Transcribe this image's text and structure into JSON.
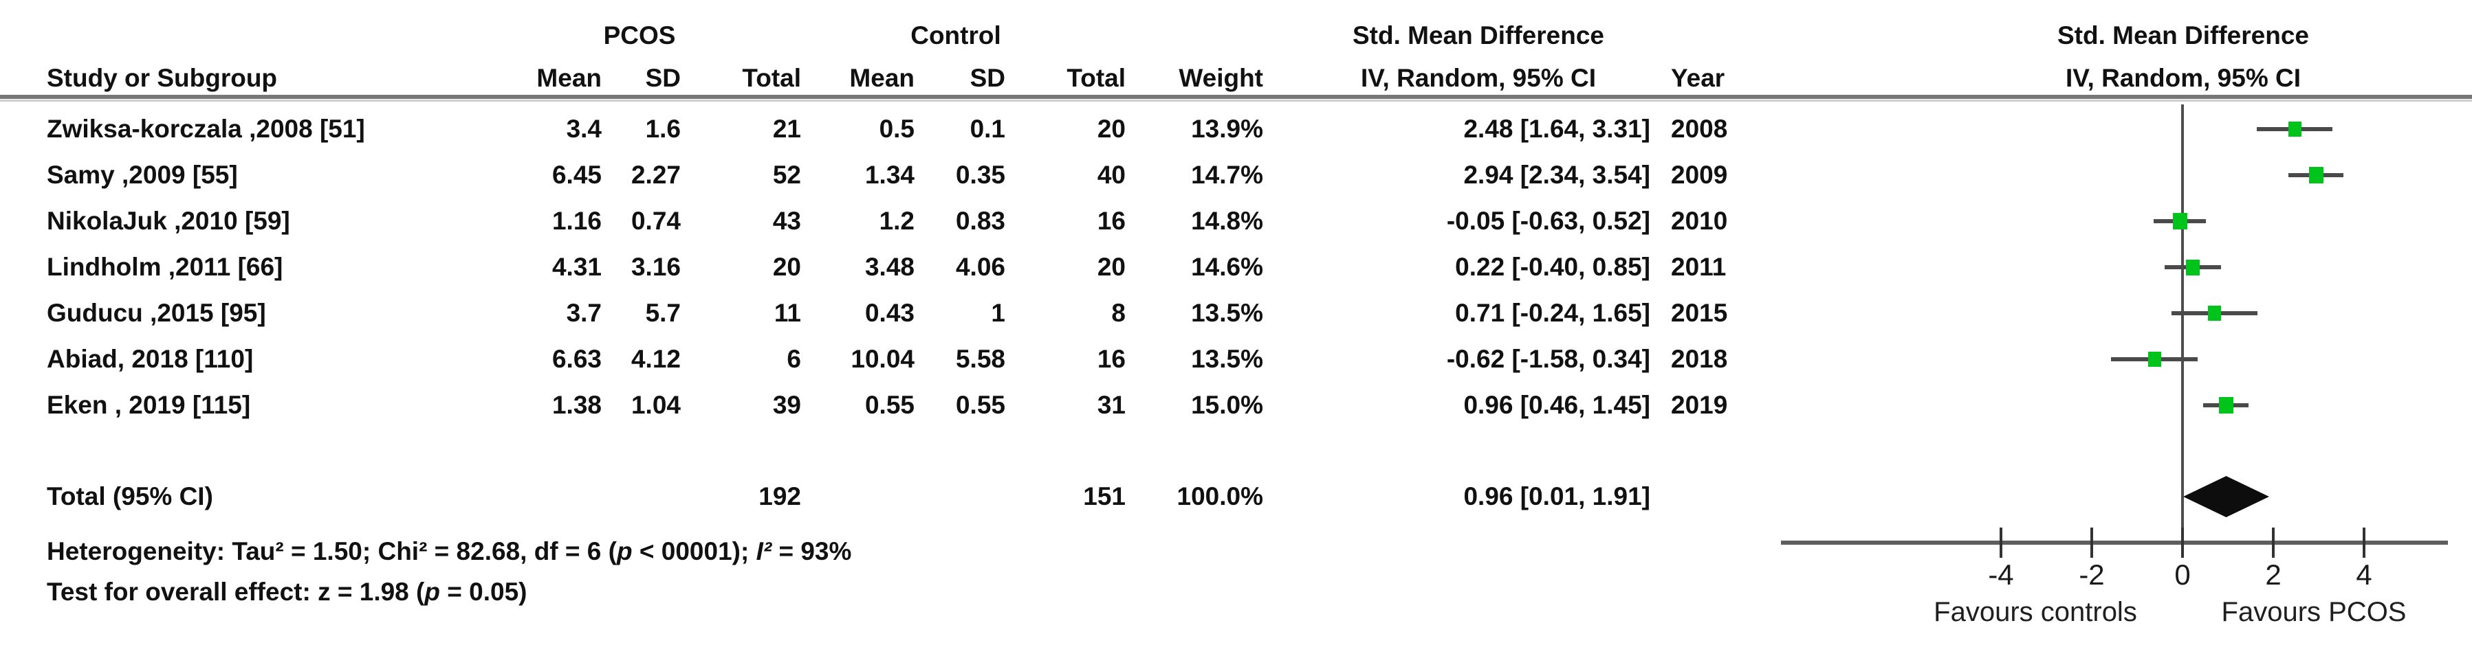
{
  "header": {
    "group_pcos": "PCOS",
    "group_control": "Control",
    "smd_table": "Std. Mean Difference",
    "smd_plot": "Std. Mean Difference",
    "study": "Study or Subgroup",
    "pcos_mean": "Mean",
    "pcos_sd": "SD",
    "pcos_total": "Total",
    "ctrl_mean": "Mean",
    "ctrl_sd": "SD",
    "ctrl_total": "Total",
    "weight": "Weight",
    "iv_random_table": "IV, Random, 95% CI",
    "year": "Year",
    "iv_random_plot": "IV, Random, 95% CI"
  },
  "studies": [
    {
      "name": "Zwiksa-korczala ,2008 [51]",
      "pcos_mean": "3.4",
      "pcos_sd": "1.6",
      "pcos_total": "21",
      "ctrl_mean": "0.5",
      "ctrl_sd": "0.1",
      "ctrl_total": "20",
      "weight": "13.9%",
      "ci": "2.48 [1.64, 3.31]",
      "year": "2008",
      "est": 2.48,
      "lo": 1.64,
      "hi": 3.31,
      "weight_val": 13.9
    },
    {
      "name": "Samy ,2009 [55]",
      "pcos_mean": "6.45",
      "pcos_sd": "2.27",
      "pcos_total": "52",
      "ctrl_mean": "1.34",
      "ctrl_sd": "0.35",
      "ctrl_total": "40",
      "weight": "14.7%",
      "ci": "2.94 [2.34, 3.54]",
      "year": "2009",
      "est": 2.94,
      "lo": 2.34,
      "hi": 3.54,
      "weight_val": 14.7
    },
    {
      "name": "NikolaJuk ,2010 [59]",
      "pcos_mean": "1.16",
      "pcos_sd": "0.74",
      "pcos_total": "43",
      "ctrl_mean": "1.2",
      "ctrl_sd": "0.83",
      "ctrl_total": "16",
      "weight": "14.8%",
      "ci": "-0.05 [-0.63, 0.52]",
      "year": "2010",
      "est": -0.05,
      "lo": -0.63,
      "hi": 0.52,
      "weight_val": 14.8
    },
    {
      "name": "Lindholm ,2011 [66]",
      "pcos_mean": "4.31",
      "pcos_sd": "3.16",
      "pcos_total": "20",
      "ctrl_mean": "3.48",
      "ctrl_sd": "4.06",
      "ctrl_total": "20",
      "weight": "14.6%",
      "ci": "0.22 [-0.40, 0.85]",
      "year": "2011",
      "est": 0.22,
      "lo": -0.4,
      "hi": 0.85,
      "weight_val": 14.6
    },
    {
      "name": "Guducu ,2015 [95]",
      "pcos_mean": "3.7",
      "pcos_sd": "5.7",
      "pcos_total": "11",
      "ctrl_mean": "0.43",
      "ctrl_sd": "1",
      "ctrl_total": "8",
      "weight": "13.5%",
      "ci": "0.71 [-0.24, 1.65]",
      "year": "2015",
      "est": 0.71,
      "lo": -0.24,
      "hi": 1.65,
      "weight_val": 13.5
    },
    {
      "name": "Abiad, 2018 [110]",
      "pcos_mean": "6.63",
      "pcos_sd": "4.12",
      "pcos_total": "6",
      "ctrl_mean": "10.04",
      "ctrl_sd": "5.58",
      "ctrl_total": "16",
      "weight": "13.5%",
      "ci": "-0.62 [-1.58, 0.34]",
      "year": "2018",
      "est": -0.62,
      "lo": -1.58,
      "hi": 0.34,
      "weight_val": 13.5
    },
    {
      "name": "Eken , 2019 [115]",
      "pcos_mean": "1.38",
      "pcos_sd": "1.04",
      "pcos_total": "39",
      "ctrl_mean": "0.55",
      "ctrl_sd": "0.55",
      "ctrl_total": "31",
      "weight": "15.0%",
      "ci": "0.96 [0.46, 1.45]",
      "year": "2019",
      "est": 0.96,
      "lo": 0.46,
      "hi": 1.45,
      "weight_val": 15.0
    }
  ],
  "total": {
    "label": "Total (95% CI)",
    "pcos_total": "192",
    "ctrl_total": "151",
    "weight": "100.0%",
    "ci": "0.96 [0.01, 1.91]",
    "est": 0.96,
    "lo": 0.01,
    "hi": 1.91
  },
  "heterogeneity": {
    "part1": "Heterogeneity: Tau² = 1.50; Chi² = 82.68, df = 6 (",
    "p_italic": "p",
    "part2": " < 00001); ",
    "i_italic": "I²",
    "part3": " = 93%"
  },
  "overall": {
    "part1": "Test for overall effect: z = 1.98 (",
    "p_italic": "p",
    "part2": " = 0.05)"
  },
  "axis": {
    "ticks": [
      -4,
      -2,
      0,
      2,
      4
    ],
    "favours_left": "Favours controls",
    "favours_right": "Favours PCOS"
  },
  "colors": {
    "marker_green": "#00c41c",
    "diamond_black": "#0d0d0d",
    "line_gray": "#4d4d4d"
  },
  "chart_data": {
    "type": "scatter",
    "subtype": "forest-plot",
    "title": "Std. Mean Difference",
    "xlabel": "IV, Random, 95% CI",
    "categories": [
      "Zwiksa-korczala ,2008 [51]",
      "Samy ,2009 [55]",
      "NikolaJuk ,2010 [59]",
      "Lindholm ,2011 [66]",
      "Guducu ,2015 [95]",
      "Abiad, 2018 [110]",
      "Eken , 2019 [115]"
    ],
    "series": [
      {
        "name": "Std. Mean Difference",
        "values": [
          2.48,
          2.94,
          -0.05,
          0.22,
          0.71,
          -0.62,
          0.96
        ],
        "ci_low": [
          1.64,
          2.34,
          -0.63,
          -0.4,
          -0.24,
          -1.58,
          0.46
        ],
        "ci_high": [
          3.31,
          3.54,
          0.52,
          0.85,
          1.65,
          0.34,
          1.45
        ]
      }
    ],
    "weights_pct": [
      13.9,
      14.7,
      14.8,
      14.6,
      13.5,
      13.5,
      15.0
    ],
    "years": [
      2008,
      2009,
      2010,
      2011,
      2015,
      2018,
      2019
    ],
    "pooled": {
      "est": 0.96,
      "lo": 0.01,
      "hi": 1.91
    },
    "xticks": [
      -4,
      -2,
      0,
      2,
      4
    ],
    "annotations": [
      "Favours controls",
      "Favours PCOS"
    ],
    "legend_position": "none",
    "grid": false
  }
}
